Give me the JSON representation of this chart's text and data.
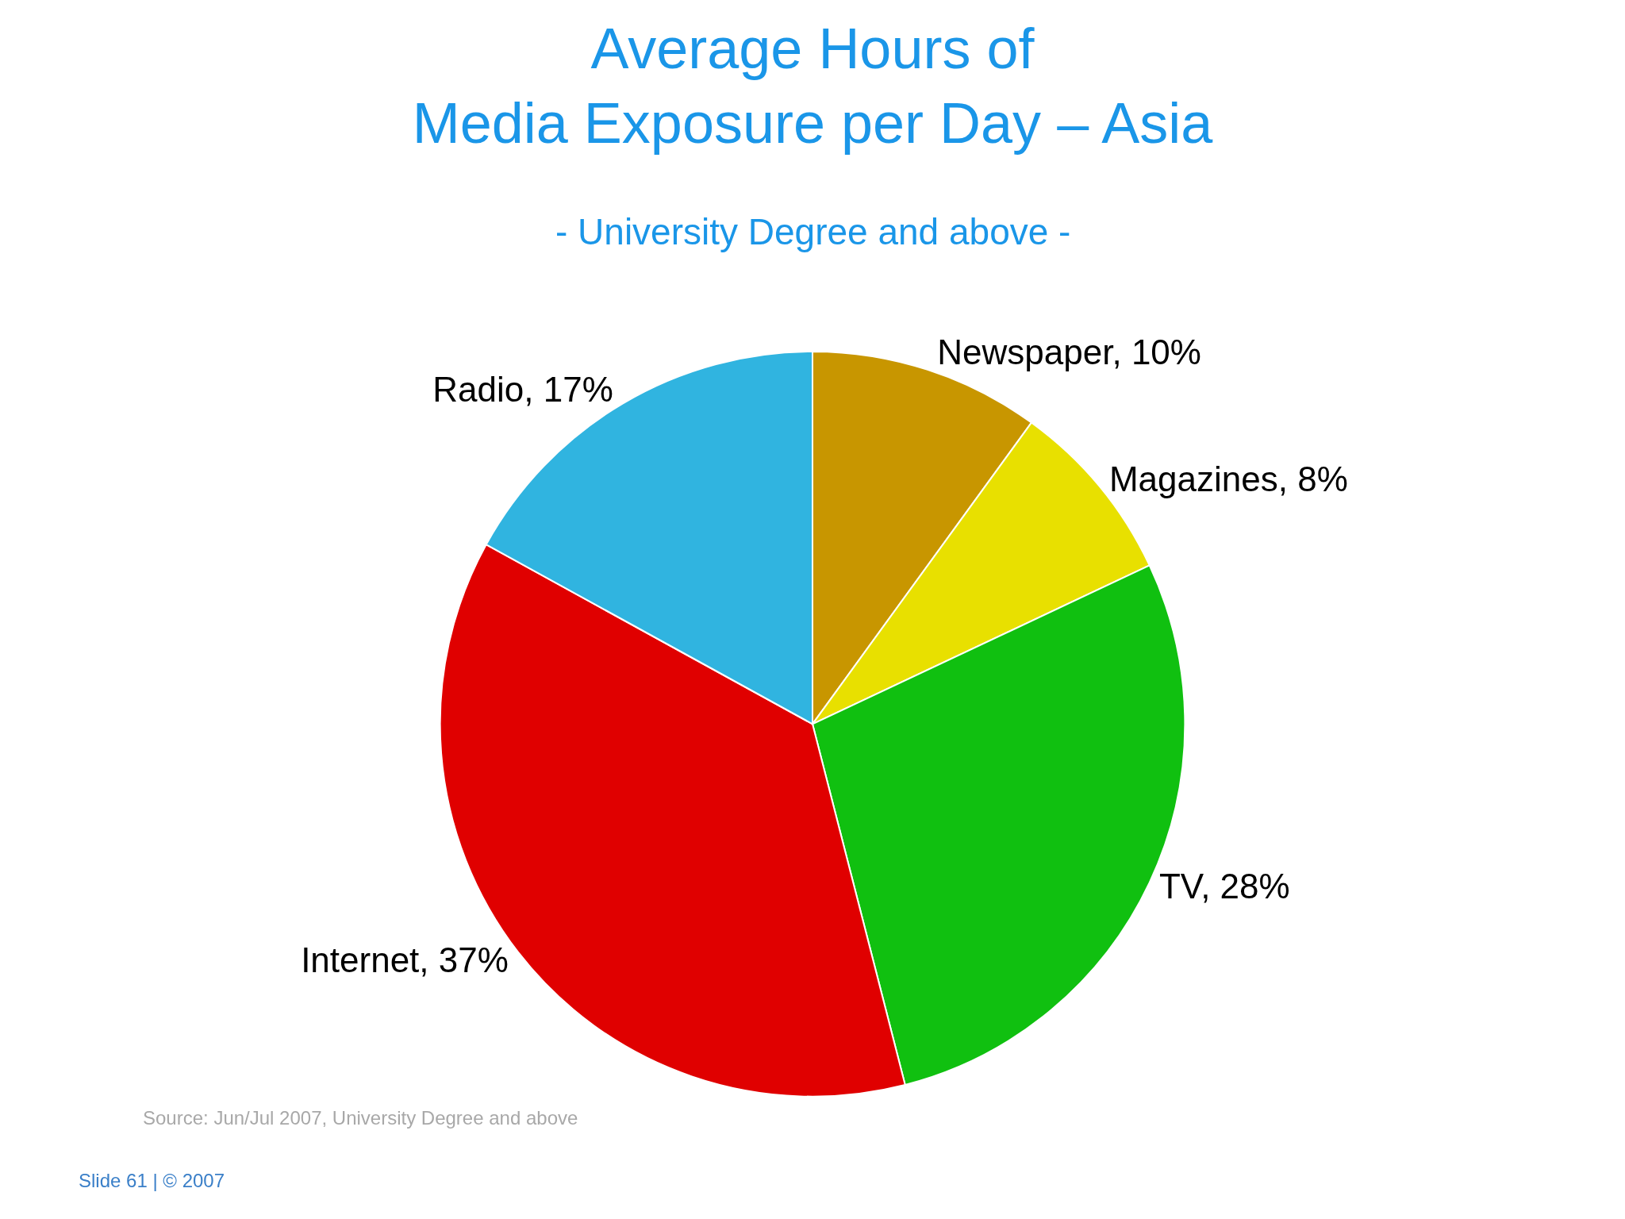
{
  "chart_data": {
    "type": "pie",
    "title": "Average Hours of\nMedia Exposure per Day – Asia",
    "subtitle": "- University Degree and above -",
    "categories": [
      "Newspaper",
      "Magazines",
      "TV",
      "Internet",
      "Radio"
    ],
    "values": [
      10,
      8,
      28,
      37,
      17
    ],
    "colors": [
      "#c89600",
      "#e8e000",
      "#10c010",
      "#e00000",
      "#30b4e0"
    ],
    "value_labels": [
      "10%",
      "8%",
      "28%",
      "37%",
      "17%"
    ],
    "annotations": [
      "Source: Jun/Jul 2007, University Degree and above",
      "Slide 61 | © 2007"
    ],
    "legend": false
  }
}
